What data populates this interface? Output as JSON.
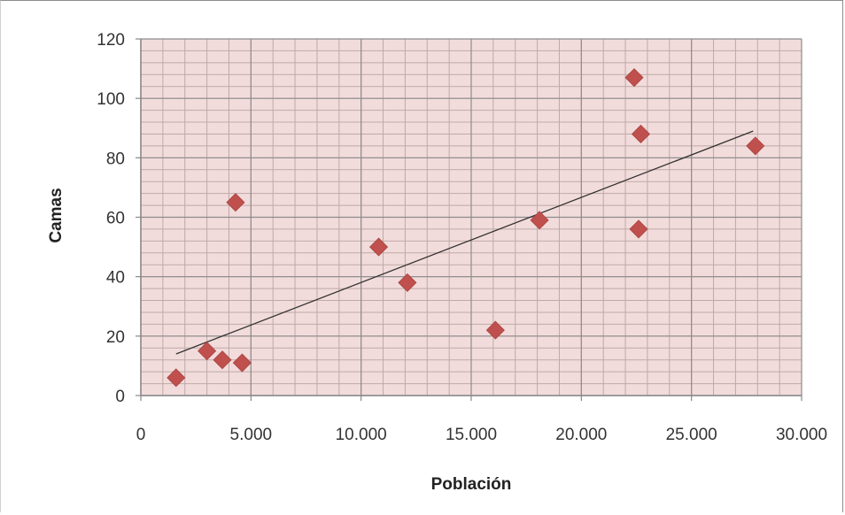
{
  "chart_data": {
    "type": "scatter",
    "xlabel": "Población",
    "ylabel": "Camas",
    "xlim": [
      0,
      30000
    ],
    "ylim": [
      0,
      120
    ],
    "x_ticks": [
      0,
      5000,
      10000,
      15000,
      20000,
      25000,
      30000
    ],
    "x_tick_labels": [
      "0",
      "5.000",
      "10.000",
      "15.000",
      "20.000",
      "25.000",
      "30.000"
    ],
    "y_ticks": [
      0,
      20,
      40,
      60,
      80,
      100,
      120
    ],
    "y_tick_labels": [
      "0",
      "20",
      "40",
      "60",
      "80",
      "100",
      "120"
    ],
    "grid": true,
    "minor_grid": true,
    "legend": "none",
    "series": [
      {
        "marker": "diamond",
        "color": "#c0504d",
        "points": [
          {
            "x": 1600,
            "y": 6
          },
          {
            "x": 3000,
            "y": 15
          },
          {
            "x": 3700,
            "y": 12
          },
          {
            "x": 4300,
            "y": 65
          },
          {
            "x": 4600,
            "y": 11
          },
          {
            "x": 10800,
            "y": 50
          },
          {
            "x": 12100,
            "y": 38
          },
          {
            "x": 16100,
            "y": 22
          },
          {
            "x": 18100,
            "y": 59
          },
          {
            "x": 22400,
            "y": 107
          },
          {
            "x": 22600,
            "y": 56
          },
          {
            "x": 22700,
            "y": 88
          },
          {
            "x": 27900,
            "y": 84
          }
        ]
      }
    ],
    "trendline": {
      "type": "linear",
      "color": "#333333",
      "start": {
        "x": 1600,
        "y": 14
      },
      "end": {
        "x": 27800,
        "y": 89
      }
    },
    "plot_background": "#f2dcdb",
    "grid_color": "#8c8c8c"
  }
}
